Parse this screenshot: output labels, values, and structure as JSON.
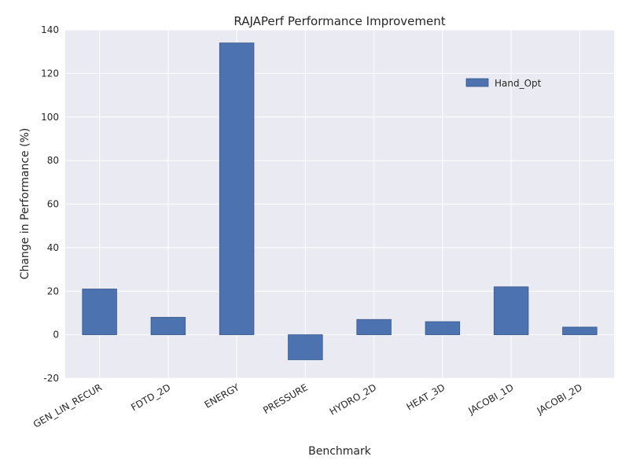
{
  "chart_data": {
    "type": "bar",
    "title": "RAJAPerf Performance Improvement",
    "xlabel": "Benchmark",
    "ylabel": "Change in Performance (%)",
    "categories": [
      "GEN_LIN_RECUR",
      "FDTD_2D",
      "ENERGY",
      "PRESSURE",
      "HYDRO_2D",
      "HEAT_3D",
      "JACOBI_1D",
      "JACOBI_2D"
    ],
    "series": [
      {
        "name": "Hand_Opt",
        "values": [
          21,
          8,
          134,
          -11.5,
          7,
          6,
          22,
          3.5
        ],
        "color": "#4c72b0"
      }
    ],
    "ylim": [
      -20,
      140
    ],
    "yticks": [
      -20,
      0,
      20,
      40,
      60,
      80,
      100,
      120,
      140
    ],
    "grid": true,
    "legend_position": "upper-right",
    "plot_background": "#eaeaf2",
    "grid_color": "#ffffff"
  }
}
